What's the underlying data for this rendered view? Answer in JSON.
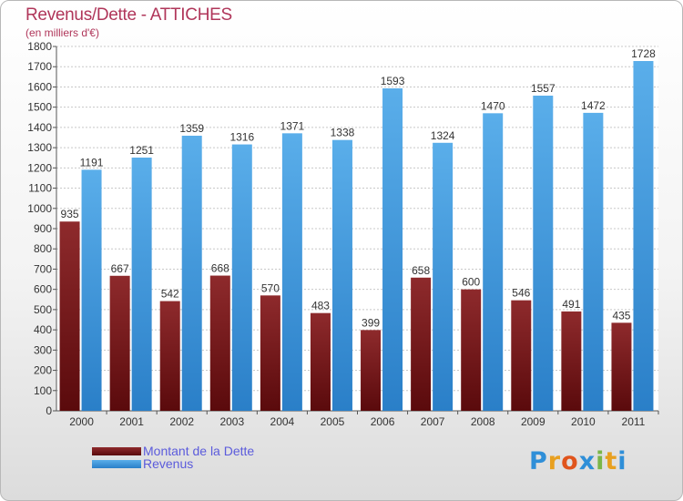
{
  "header": {
    "title": "Revenus/Dette - ATTICHES",
    "subtitle": "(en milliers d'€)"
  },
  "legend": {
    "items": [
      {
        "label": "Montant de la Dette",
        "color": "#7a1416"
      },
      {
        "label": "Revenus",
        "color": "#3d9be3"
      }
    ]
  },
  "brand": {
    "letters": [
      "P",
      "r",
      "o",
      "x",
      "i",
      "t",
      "i"
    ],
    "colors": [
      "#2f8fd8",
      "#e8a020",
      "#e0541c",
      "#2f8fd8",
      "#7ab648",
      "#e8a020",
      "#2f8fd8"
    ]
  },
  "chart_data": {
    "type": "bar",
    "title": "Revenus/Dette - ATTICHES",
    "subtitle": "(en milliers d'€)",
    "categories": [
      "2000",
      "2001",
      "2002",
      "2003",
      "2004",
      "2005",
      "2006",
      "2007",
      "2008",
      "2009",
      "2010",
      "2011"
    ],
    "series": [
      {
        "name": "Montant de la Dette",
        "color": "#7a1416",
        "values": [
          935,
          667,
          542,
          668,
          570,
          483,
          399,
          658,
          600,
          546,
          491,
          435
        ]
      },
      {
        "name": "Revenus",
        "color": "#3d9be3",
        "values": [
          1191,
          1251,
          1359,
          1316,
          1371,
          1338,
          1593,
          1324,
          1470,
          1557,
          1472,
          1728
        ]
      }
    ],
    "yticks": [
      0,
      100,
      200,
      300,
      400,
      500,
      600,
      700,
      800,
      900,
      1000,
      1100,
      1200,
      1300,
      1400,
      1500,
      1600,
      1700,
      1800
    ],
    "ylim": [
      0,
      1800
    ],
    "grid": true,
    "legend_position": "bottom-left"
  }
}
